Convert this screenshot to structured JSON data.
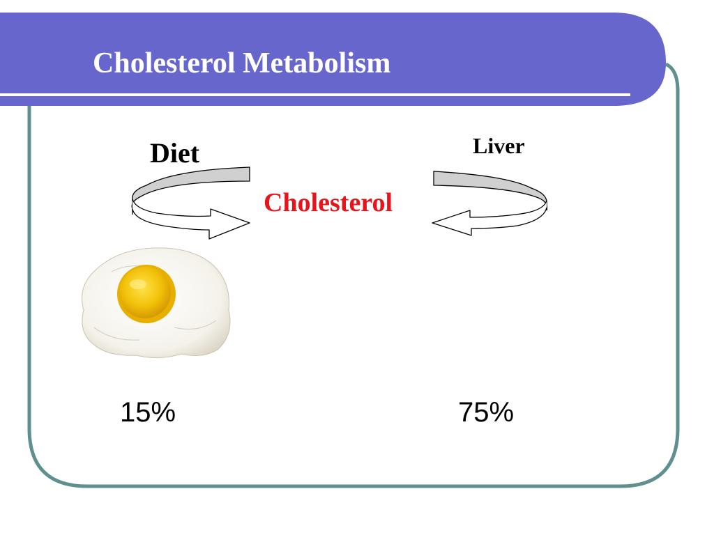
{
  "slide": {
    "title": "Cholesterol Metabolism",
    "colors": {
      "title_bar": "#6666cc",
      "frame_border": "#5f8f8f",
      "title_text": "#ffffff",
      "center_text": "#e8141c"
    }
  },
  "diagram": {
    "center_label": "Cholesterol",
    "sources": [
      {
        "label": "Diet",
        "percent": "15%",
        "icon": "fried-egg-image",
        "arrow": "curved-arrow-right"
      },
      {
        "label": "Liver",
        "percent": "75%",
        "icon": "",
        "arrow": "curved-arrow-left"
      }
    ]
  }
}
